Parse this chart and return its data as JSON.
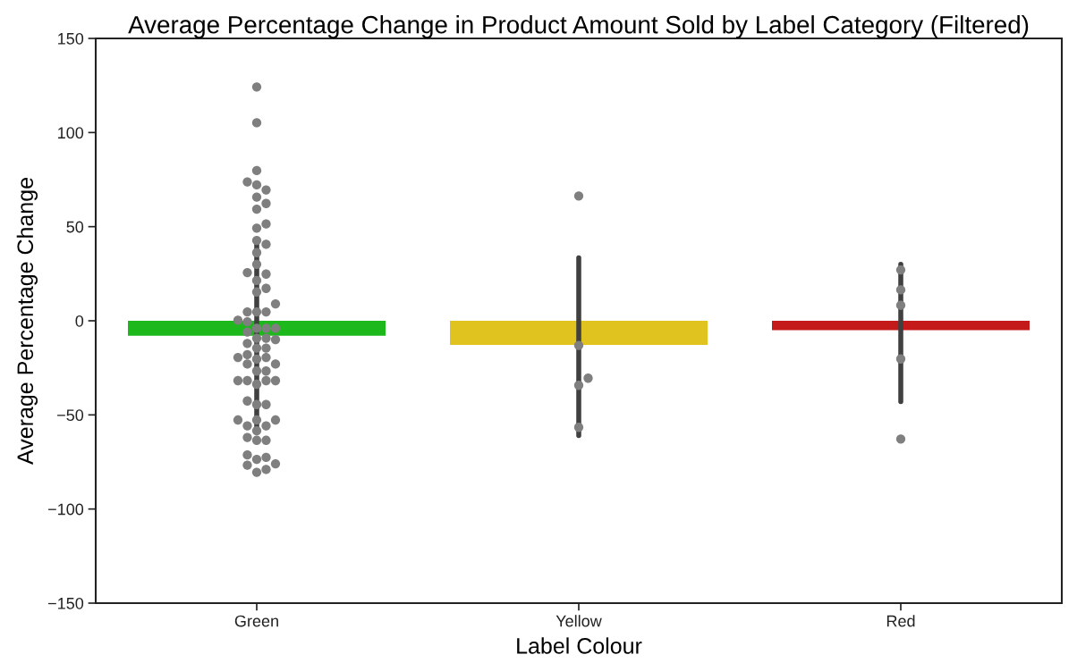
{
  "chart_data": {
    "type": "bar",
    "title": "Average Percentage Change in Product Amount Sold by Label Category (Filtered)",
    "xlabel": "Label Colour",
    "ylabel": "Average Percentage Change",
    "categories": [
      "Green",
      "Yellow",
      "Red"
    ],
    "ylim": [
      -150,
      150
    ],
    "yticks": [
      -150,
      -100,
      -50,
      0,
      50,
      100,
      150
    ],
    "grid": false,
    "marker": "circle",
    "series": [
      {
        "colors": [
          "#1cb81c",
          "#e0c31f",
          "#c41a1a"
        ],
        "values": [
          -8,
          -12.8,
          -5
        ],
        "errors": [
          [
            -57,
            40.5
          ],
          [
            -61,
            33.5
          ],
          [
            -43,
            30
          ]
        ]
      },
      {
        "type": "scatter",
        "color": "#7f7f7f",
        "x": [
          "Green",
          "Green",
          "Green",
          "Green",
          "Green",
          "Green",
          "Green",
          "Green",
          "Green",
          "Green",
          "Green",
          "Green",
          "Green",
          "Green",
          "Green",
          "Green",
          "Green",
          "Green",
          "Green",
          "Green",
          "Green",
          "Green",
          "Green",
          "Green",
          "Green",
          "Green",
          "Green",
          "Green",
          "Green",
          "Green",
          "Green",
          "Green",
          "Green",
          "Green",
          "Green",
          "Green",
          "Green",
          "Green",
          "Green",
          "Green",
          "Green",
          "Green",
          "Green",
          "Green",
          "Green",
          "Green",
          "Green",
          "Green",
          "Green",
          "Green",
          "Green",
          "Green",
          "Green",
          "Green",
          "Green",
          "Green",
          "Green",
          "Green",
          "Green",
          "Green",
          "Green",
          "Green",
          "Green",
          "Green",
          "Green",
          "Green",
          "Green",
          "Green",
          "Yellow",
          "Yellow",
          "Yellow",
          "Yellow",
          "Yellow",
          "Red",
          "Red",
          "Red",
          "Red",
          "Red"
        ],
        "values": [
          124.2,
          105.2,
          79.8,
          73.8,
          72.2,
          69.5,
          65.7,
          62.3,
          59.3,
          51.4,
          49.2,
          42.7,
          40.6,
          36.2,
          30.0,
          25.6,
          24.8,
          21.4,
          17.2,
          15.3,
          9.0,
          4.7,
          4.7,
          4.7,
          0.3,
          -0.5,
          -4.0,
          -4.0,
          -4.0,
          -6.0,
          -9.3,
          -9.3,
          -10,
          -12,
          -14.5,
          -14.5,
          -18,
          -19.5,
          -19.5,
          -20.4,
          -23,
          -23,
          -26.7,
          -26.7,
          -31.8,
          -31.8,
          -31.8,
          -31.8,
          -33.7,
          -42.6,
          -44.5,
          -44.5,
          -52.7,
          -52.7,
          -52.7,
          -55.8,
          -55.8,
          -58.4,
          -62,
          -63.5,
          -63.5,
          -71.3,
          -72.6,
          -73.6,
          -76,
          -76.7,
          -79,
          -80.5,
          66.3,
          -13.1,
          -30.5,
          -34.3,
          -56.6,
          27,
          16.4,
          8.2,
          -20.3,
          -62.8
        ]
      }
    ]
  }
}
